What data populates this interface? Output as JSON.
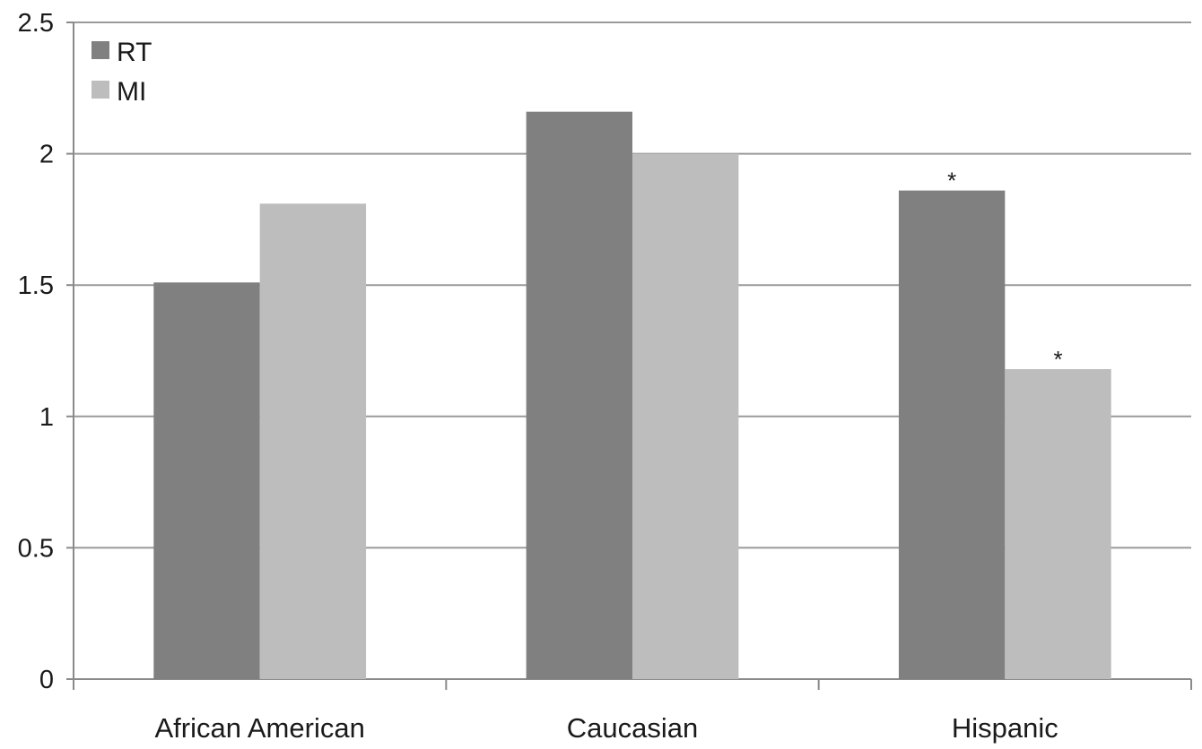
{
  "chart_data": {
    "type": "bar",
    "title": "",
    "xlabel": "",
    "ylabel": "",
    "categories": [
      "African American",
      "Caucasian",
      "Hispanic"
    ],
    "series": [
      {
        "name": "RT",
        "color": "#808080",
        "values": [
          1.51,
          2.16,
          1.86
        ]
      },
      {
        "name": "MI",
        "color": "#bdbdbd",
        "values": [
          1.81,
          2.0,
          1.18
        ]
      }
    ],
    "yticks": [
      "0",
      "0.5",
      "1",
      "1.5",
      "2",
      "2.5"
    ],
    "ylim": [
      0,
      2.5
    ],
    "grid": true,
    "legend_position": "top-left",
    "annotations": [
      {
        "category": "Hispanic",
        "series": "RT",
        "text": "*"
      },
      {
        "category": "Hispanic",
        "series": "MI",
        "text": "*"
      }
    ]
  }
}
